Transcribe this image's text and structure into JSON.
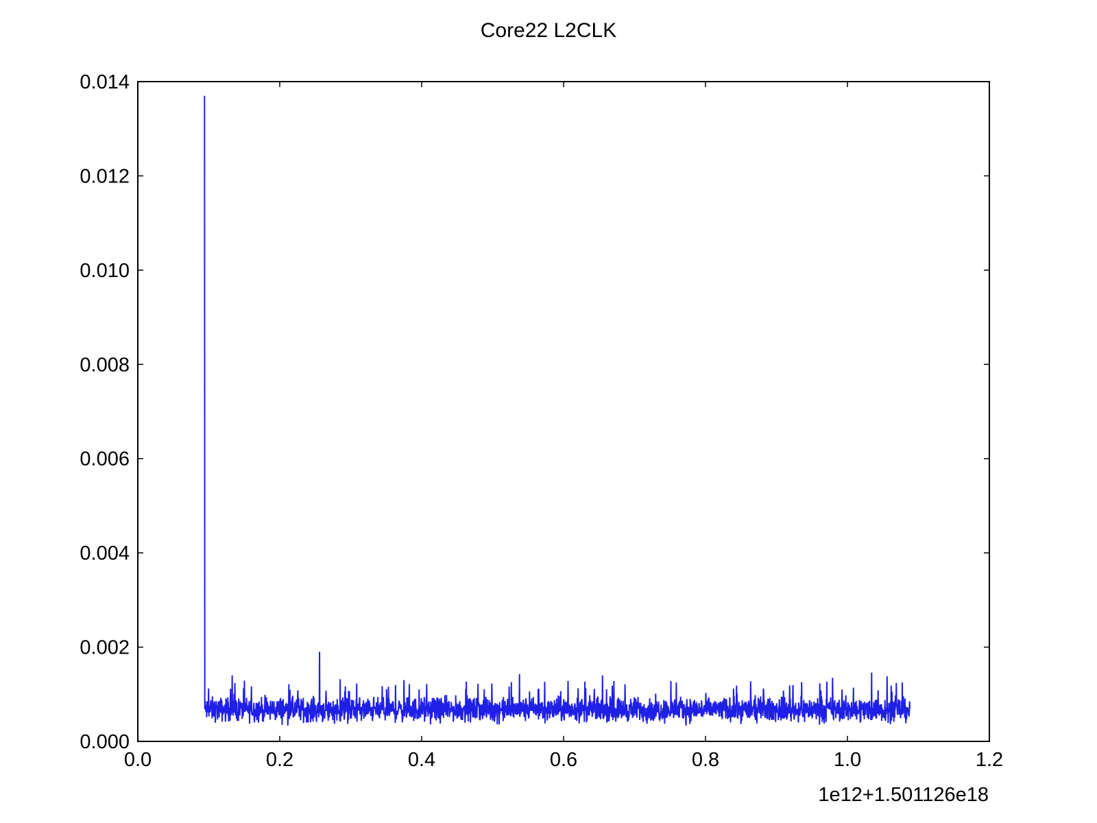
{
  "chart_data": {
    "type": "line",
    "title": "Core22 L2CLK",
    "xlabel": "",
    "ylabel": "",
    "x_offset_label": "1e12+1.501126e18",
    "xlim": [
      0.0,
      1.2
    ],
    "ylim": [
      0.0,
      0.014
    ],
    "x_ticks": [
      0.0,
      0.2,
      0.4,
      0.6,
      0.8,
      1.0,
      1.2
    ],
    "x_tick_labels": [
      "0.0",
      "0.2",
      "0.4",
      "0.6",
      "0.8",
      "1.0",
      "1.2"
    ],
    "y_ticks": [
      0.0,
      0.002,
      0.004,
      0.006,
      0.008,
      0.01,
      0.012,
      0.014
    ],
    "y_tick_labels": [
      "0.000",
      "0.002",
      "0.004",
      "0.006",
      "0.008",
      "0.010",
      "0.012",
      "0.014"
    ],
    "grid": false,
    "legend": "none",
    "series_color": "#1f1fe6",
    "series": [
      {
        "x_start": 0.094,
        "x_end": 1.088,
        "baseline": 0.00065,
        "noise_range": [
          0.0003,
          0.00105
        ],
        "spikes": [
          {
            "x": 0.094,
            "y": 0.0137
          },
          {
            "x": 0.256,
            "y": 0.0019
          },
          {
            "x": 0.133,
            "y": 0.0014
          },
          {
            "x": 0.285,
            "y": 0.00132
          },
          {
            "x": 0.375,
            "y": 0.0013
          },
          {
            "x": 0.538,
            "y": 0.00143
          },
          {
            "x": 0.655,
            "y": 0.0014
          },
          {
            "x": 0.751,
            "y": 0.00128
          },
          {
            "x": 0.979,
            "y": 0.00135
          },
          {
            "x": 1.034,
            "y": 0.00146
          },
          {
            "x": 1.056,
            "y": 0.00138
          }
        ]
      }
    ]
  }
}
